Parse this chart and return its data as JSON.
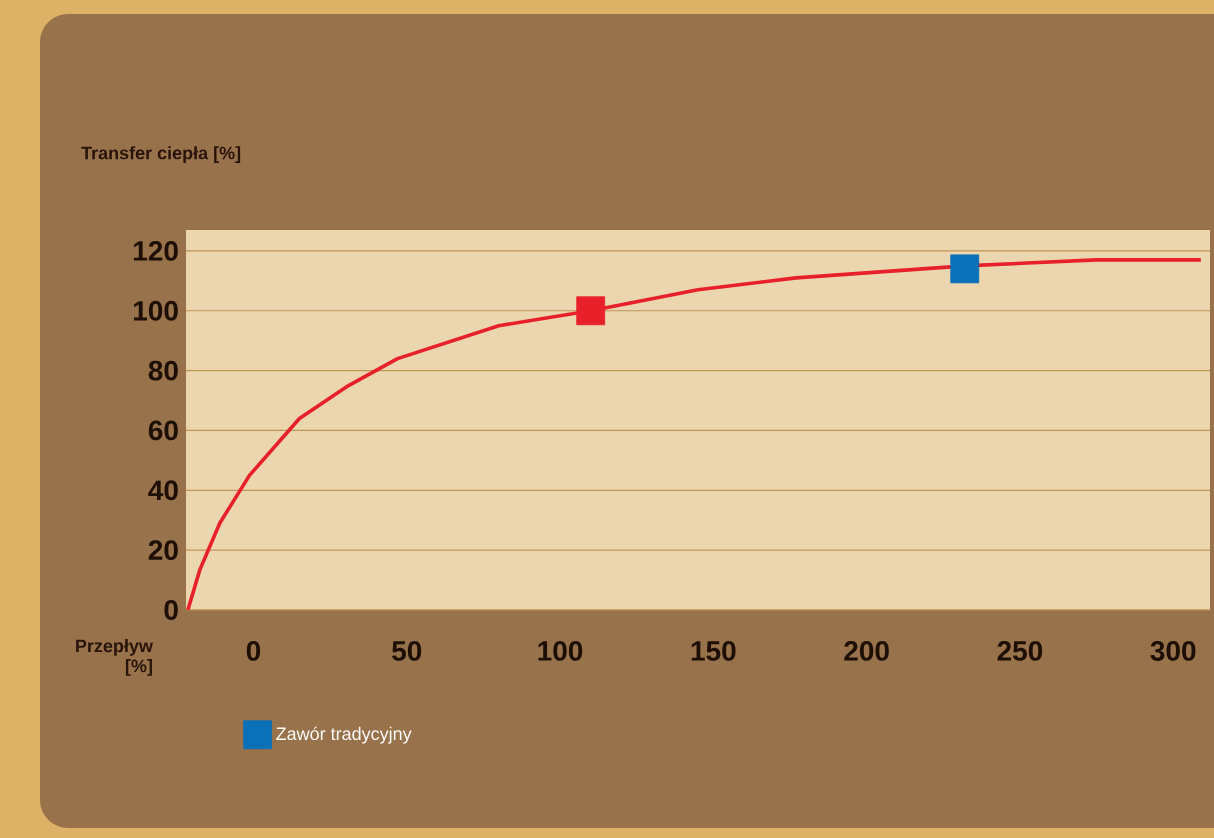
{
  "chart_data": {
    "type": "line",
    "ylabel": "Transfer ciepła [%]",
    "annotations": [
      "Przepływ [%]"
    ],
    "xlim": [
      -22,
      312
    ],
    "ylim": [
      0,
      127
    ],
    "xticks": [
      0,
      50,
      100,
      150,
      200,
      250,
      300
    ],
    "yticks": [
      0,
      20,
      40,
      60,
      80,
      100,
      120
    ],
    "grid": "y",
    "legend": "bottom",
    "series": [
      {
        "type": "line",
        "color": "#e8202a",
        "marker": "none",
        "x": [
          -21.4,
          -17.5,
          -11,
          -1.3,
          15,
          31,
          47,
          80,
          110,
          145,
          177,
          232,
          275,
          309
        ],
        "values": [
          0,
          13.4,
          29,
          45,
          64,
          75,
          84,
          95,
          100,
          107,
          111,
          115,
          117,
          117
        ]
      },
      {
        "type": "scatter",
        "color": "#e8202a",
        "marker": "square",
        "x": [
          110
        ],
        "values": [
          100
        ]
      },
      {
        "type": "scatter",
        "name": "Zawór tradycyjny",
        "color": "#0a70b8",
        "marker": "square",
        "x": [
          232
        ],
        "values": [
          114
        ]
      }
    ]
  }
}
